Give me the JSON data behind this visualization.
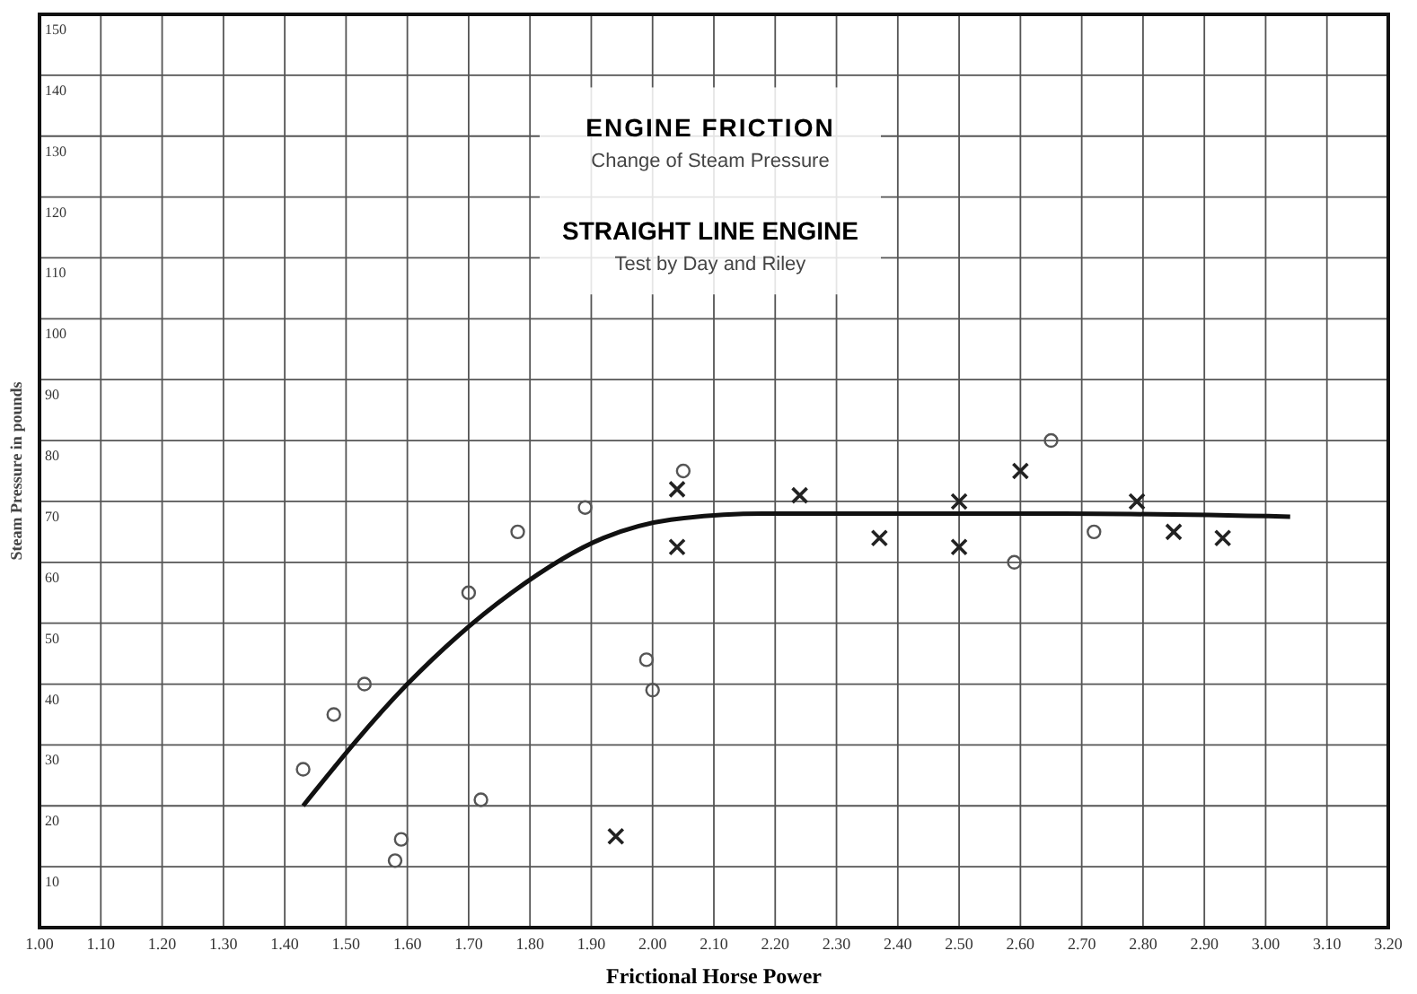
{
  "chart_data": {
    "type": "scatter",
    "title": "ENGINE FRICTION",
    "subtitle": "Change of Steam Pressure",
    "annotations": [
      "STRAIGHT LINE ENGINE",
      "Test by Day and Riley"
    ],
    "xlabel": "Frictional Horse Power",
    "ylabel": "Steam Pressure in pounds",
    "xlim": [
      1.0,
      3.2
    ],
    "ylim": [
      0,
      150
    ],
    "xticks": [
      {
        "value": 1.0,
        "label": "1.00"
      },
      {
        "value": 1.1,
        "label": "1.10"
      },
      {
        "value": 1.2,
        "label": "1.20"
      },
      {
        "value": 1.3,
        "label": "1.30"
      },
      {
        "value": 1.4,
        "label": "1.40"
      },
      {
        "value": 1.5,
        "label": "1.50"
      },
      {
        "value": 1.6,
        "label": "1.60"
      },
      {
        "value": 1.7,
        "label": "1.70"
      },
      {
        "value": 1.8,
        "label": "1.80"
      },
      {
        "value": 1.9,
        "label": "1.90"
      },
      {
        "value": 2.0,
        "label": "2.00"
      },
      {
        "value": 2.1,
        "label": "2.10"
      },
      {
        "value": 2.2,
        "label": "2.20"
      },
      {
        "value": 2.3,
        "label": "2.30"
      },
      {
        "value": 2.4,
        "label": "2.40"
      },
      {
        "value": 2.5,
        "label": "2.50"
      },
      {
        "value": 2.6,
        "label": "2.60"
      },
      {
        "value": 2.7,
        "label": "2.70"
      },
      {
        "value": 2.8,
        "label": "2.80"
      },
      {
        "value": 2.9,
        "label": "2.90"
      },
      {
        "value": 3.0,
        "label": "3.00"
      },
      {
        "value": 3.1,
        "label": "3.10"
      },
      {
        "value": 3.2,
        "label": "3.20"
      }
    ],
    "yticks": [
      10,
      20,
      30,
      40,
      50,
      60,
      70,
      80,
      90,
      100,
      110,
      120,
      130,
      140,
      150
    ],
    "grid": true,
    "series": [
      {
        "type": "line",
        "color": "#111111",
        "marker": "none",
        "line_style": "solid",
        "x": [
          1.43,
          1.6,
          1.77,
          1.92,
          2.03,
          2.18,
          2.38,
          2.67,
          3.04
        ],
        "values": [
          20,
          40,
          55,
          64,
          67,
          68,
          68,
          68,
          67.5
        ]
      },
      {
        "color": "#555555",
        "marker": "circle",
        "x": [
          1.43,
          1.48,
          1.53,
          1.59,
          1.58,
          1.72,
          1.7,
          1.78,
          1.89,
          1.99,
          2.0,
          2.05,
          2.65,
          2.72,
          2.59
        ],
        "values": [
          26,
          35,
          40,
          14.5,
          11,
          21,
          55,
          65,
          69,
          44,
          39,
          75,
          80,
          65,
          60
        ]
      },
      {
        "color": "#222222",
        "marker": "cross",
        "x": [
          1.94,
          2.04,
          2.04,
          2.24,
          2.37,
          2.5,
          2.5,
          2.6,
          2.79,
          2.85,
          2.93
        ],
        "values": [
          15,
          72,
          62.5,
          71,
          64,
          70,
          62.5,
          75,
          70,
          65,
          64
        ]
      }
    ]
  }
}
